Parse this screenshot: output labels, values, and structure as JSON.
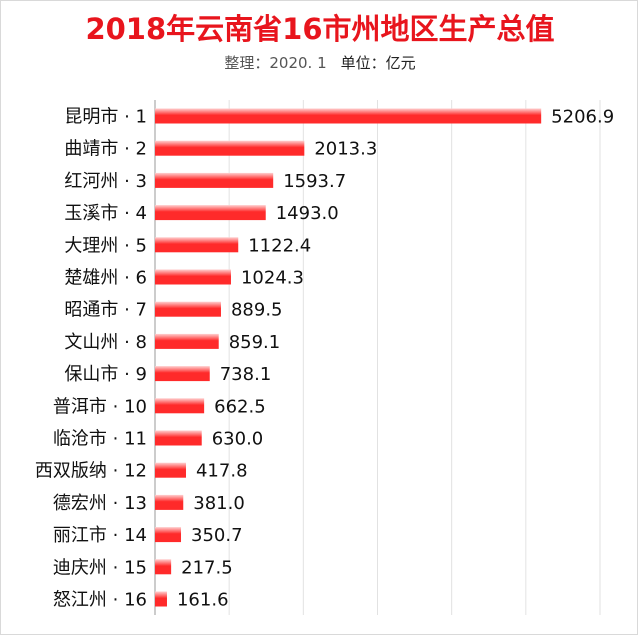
{
  "chart_data": {
    "type": "bar",
    "orientation": "horizontal",
    "title": "2018年云南省16市州地区生产总值",
    "subtitle_note": "整理：2020. 1",
    "subtitle_unit": "单位：亿元",
    "categories": [
      "昆明市 · 1",
      "曲靖市 · 2",
      "红河州 · 3",
      "玉溪市 · 4",
      "大理州 · 5",
      "楚雄州 · 6",
      "昭通市 · 7",
      "文山州 · 8",
      "保山市 · 9",
      "普洱市 · 10",
      "临沧市 · 11",
      "西双版纳 · 12",
      "德宏州 · 13",
      "丽江市 · 14",
      "迪庆州 · 15",
      "怒江州 · 16"
    ],
    "values": [
      5206.9,
      2013.3,
      1593.7,
      1493.0,
      1122.4,
      1024.3,
      889.5,
      859.1,
      738.1,
      662.5,
      630.0,
      417.8,
      381.0,
      350.7,
      217.5,
      161.6
    ],
    "value_labels": [
      "5206.9",
      "2013.3",
      "1593.7",
      "1493.0",
      "1122.4",
      "1024.3",
      "889.5",
      "859.1",
      "738.1",
      "662.5",
      "630.0",
      "417.8",
      "381.0",
      "350.7",
      "217.5",
      "161.6"
    ],
    "xlim": [
      0,
      6000
    ],
    "grid_step": 1000,
    "grid": true,
    "legend": "none",
    "bar_color": "#ff2a2a",
    "bar_highlight": "#ffd0d0",
    "title_color": "#e8151d"
  }
}
